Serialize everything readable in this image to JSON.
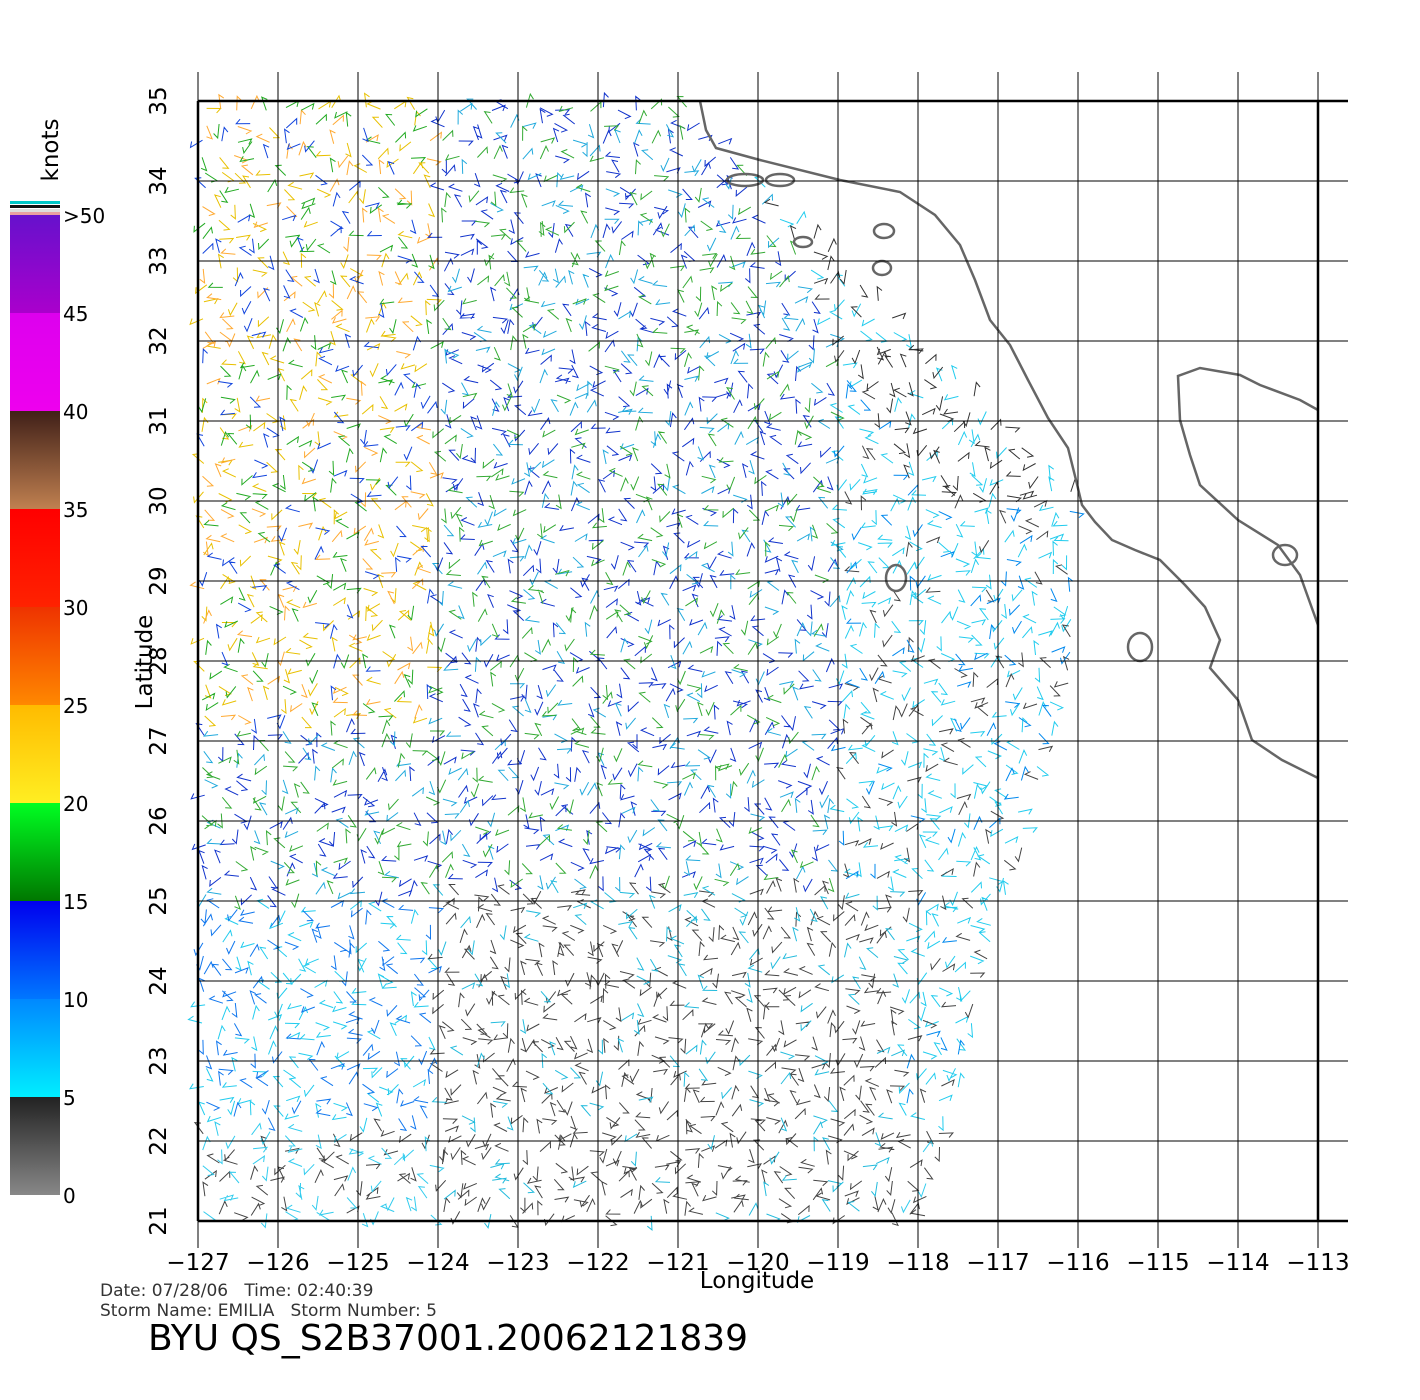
{
  "map": {
    "x_label": "Longitude",
    "y_label": "Latitude",
    "xlim": [
      -127,
      -113
    ],
    "ylim": [
      21,
      35
    ],
    "xticks": [
      {
        "value": -127,
        "label": "−127"
      },
      {
        "value": -126,
        "label": "−126"
      },
      {
        "value": -125,
        "label": "−125"
      },
      {
        "value": -124,
        "label": "−124"
      },
      {
        "value": -123,
        "label": "−123"
      },
      {
        "value": -122,
        "label": "−122"
      },
      {
        "value": -121,
        "label": "−121"
      },
      {
        "value": -120,
        "label": "−120"
      },
      {
        "value": -119,
        "label": "−119"
      },
      {
        "value": -118,
        "label": "−118"
      },
      {
        "value": -117,
        "label": "−117"
      },
      {
        "value": -116,
        "label": "−116"
      },
      {
        "value": -115,
        "label": "−115"
      },
      {
        "value": -114,
        "label": "−114"
      },
      {
        "value": -113,
        "label": "−113"
      }
    ],
    "yticks": [
      21,
      22,
      23,
      24,
      25,
      26,
      27,
      28,
      29,
      30,
      31,
      32,
      33,
      34,
      35
    ]
  },
  "colorbar": {
    "title": "knots",
    "ticks": [
      0,
      5,
      10,
      15,
      20,
      25,
      30,
      35,
      40,
      45,
      {
        "value": 50,
        "label": ">50"
      }
    ]
  },
  "footer": {
    "date_line": "Date: 07/28/06   Time: 02:40:39",
    "storm_line": "Storm Name: EMILIA   Storm Number: 5",
    "product": "BYU  QS_S2B37001.20062121839"
  }
}
